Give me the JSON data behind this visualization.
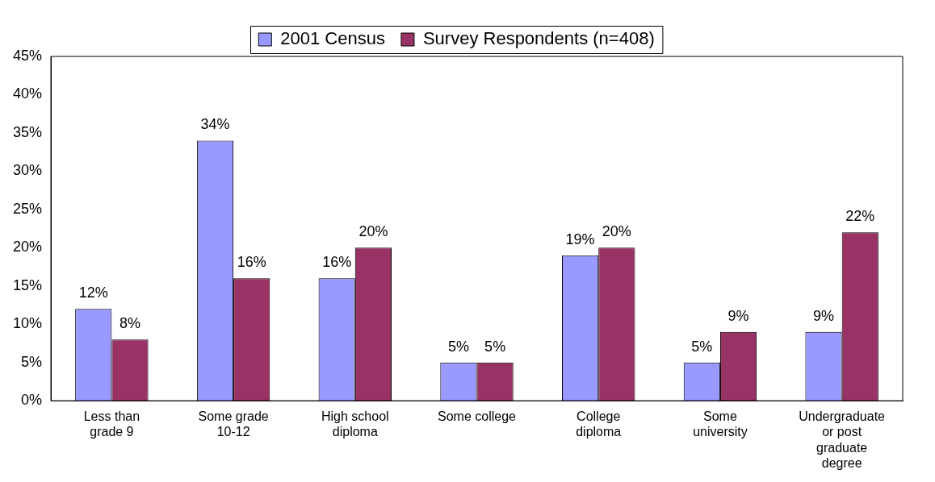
{
  "chart_data": {
    "type": "bar",
    "categories": [
      "Less than grade 9",
      "Some grade 10-12",
      "High school diploma",
      "Some college",
      "College diploma",
      "Some university",
      "Undergraduate or post graduate degree"
    ],
    "series": [
      {
        "name": "2001 Census",
        "color": "#9999ff",
        "values": [
          12,
          34,
          16,
          5,
          19,
          5,
          9
        ],
        "value_labels": [
          "12%",
          "34%",
          "16%",
          "5%",
          "19%",
          "5%",
          "9%"
        ]
      },
      {
        "name": "Survey Respondents (n=408)",
        "color": "#993366",
        "values": [
          8,
          16,
          20,
          5,
          20,
          9,
          22
        ],
        "value_labels": [
          "8%",
          "16%",
          "20%",
          "5%",
          "20%",
          "9%",
          "22%"
        ]
      }
    ],
    "ylim": [
      0,
      45
    ],
    "yticks": [
      {
        "value": 0,
        "label": "0%"
      },
      {
        "value": 5,
        "label": "5%"
      },
      {
        "value": 10,
        "label": "10%"
      },
      {
        "value": 15,
        "label": "15%"
      },
      {
        "value": 20,
        "label": "20%"
      },
      {
        "value": 25,
        "label": "25%"
      },
      {
        "value": 30,
        "label": "30%"
      },
      {
        "value": 35,
        "label": "35%"
      },
      {
        "value": 40,
        "label": "40%"
      },
      {
        "value": 45,
        "label": "45%"
      }
    ],
    "grid": false,
    "legend": "top"
  }
}
